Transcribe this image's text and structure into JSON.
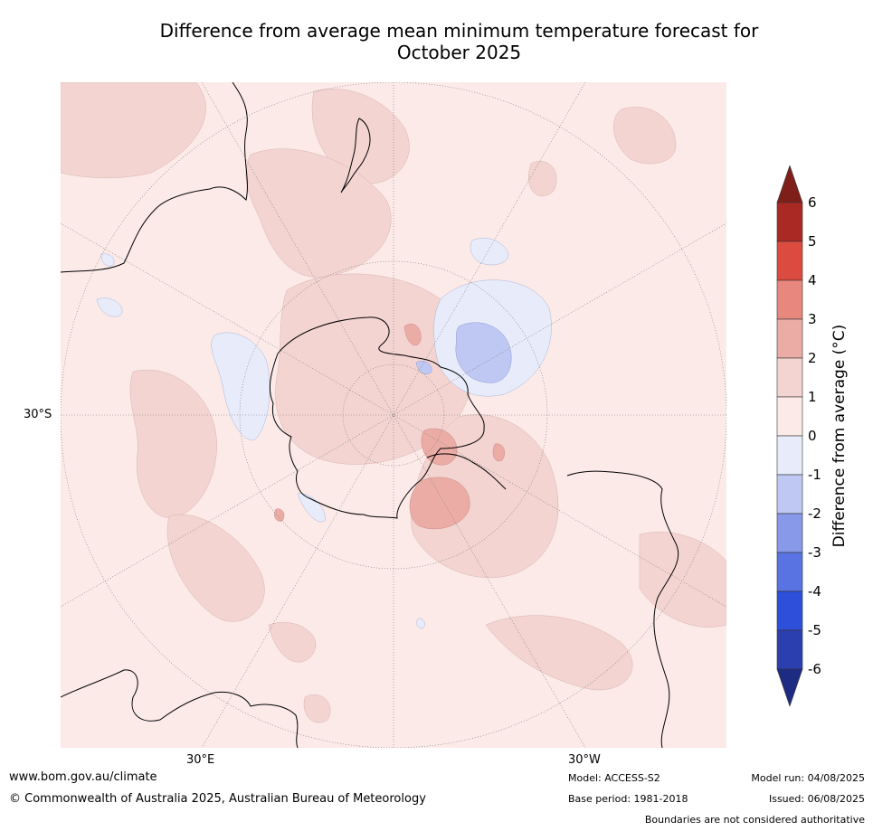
{
  "title": {
    "line1": "Difference from average mean minimum temperature forecast for",
    "line2": "October 2025"
  },
  "map": {
    "projection": "south-polar stereographic",
    "lat_labels": [
      "30°S"
    ],
    "lon_labels": [
      "30°E",
      "30°W"
    ],
    "anomaly_colors": {
      "0_to_1": "#fbeae8",
      "1_to_2": "#f3d4d1",
      "2_to_3": "#ebaca6",
      "minus1_to_0": "#e8ecfa",
      "minus2_to_minus1": "#bfc8f3"
    }
  },
  "colorbar": {
    "title": "Difference from average ($^\\circ$C)",
    "title_display": "Difference from average (°C)",
    "ticks": [
      "6",
      "5",
      "4",
      "3",
      "2",
      "1",
      "0",
      "-1",
      "-2",
      "-3",
      "-4",
      "-5",
      "-6"
    ],
    "colors": [
      "#7f1f1a",
      "#aa2a23",
      "#dc4b3f",
      "#e8877d",
      "#ebaca6",
      "#f3d4d1",
      "#fbeae8",
      "#e8ecfa",
      "#bfc8f3",
      "#8899ea",
      "#5a73e3",
      "#2d4fd9",
      "#2b3fae",
      "#1e2b82"
    ]
  },
  "footer": {
    "url": "www.bom.gov.au/climate",
    "copyright": "© Commonwealth of Australia 2025, Australian Bureau of Meteorology",
    "model": "Model: ACCESS-S2",
    "base_period": "Base period: 1981-2018",
    "model_run": "Model run: 04/08/2025",
    "issued": "Issued: 06/08/2025",
    "disclaimer": "Boundaries are not considered authoritative"
  }
}
